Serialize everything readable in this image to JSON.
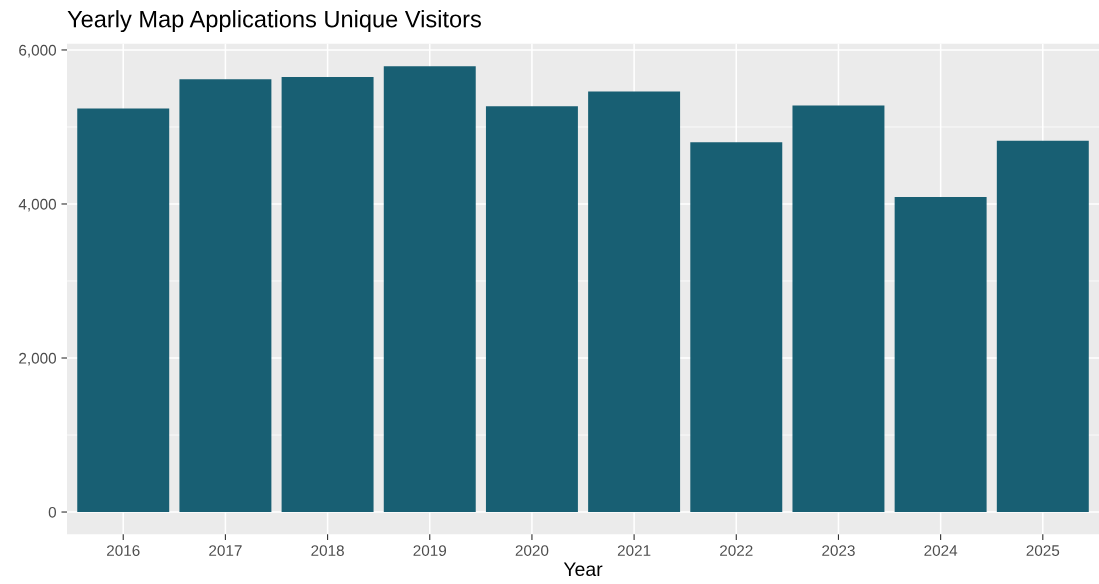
{
  "chart_data": {
    "type": "bar",
    "title": "Yearly Map Applications Unique Visitors",
    "xlabel": "Year",
    "categories": [
      "2016",
      "2017",
      "2018",
      "2019",
      "2020",
      "2021",
      "2022",
      "2023",
      "2024",
      "2025"
    ],
    "values": [
      5240,
      5620,
      5650,
      5790,
      5270,
      5460,
      4800,
      5280,
      4090,
      4820
    ],
    "color": "#185f73",
    "ylim": [
      -290,
      6080
    ],
    "yticks": [
      {
        "value": 0,
        "label": "0"
      },
      {
        "value": 2000,
        "label": "2,000"
      },
      {
        "value": 4000,
        "label": "4,000"
      },
      {
        "value": 6000,
        "label": "6,000"
      }
    ],
    "grid": true
  }
}
